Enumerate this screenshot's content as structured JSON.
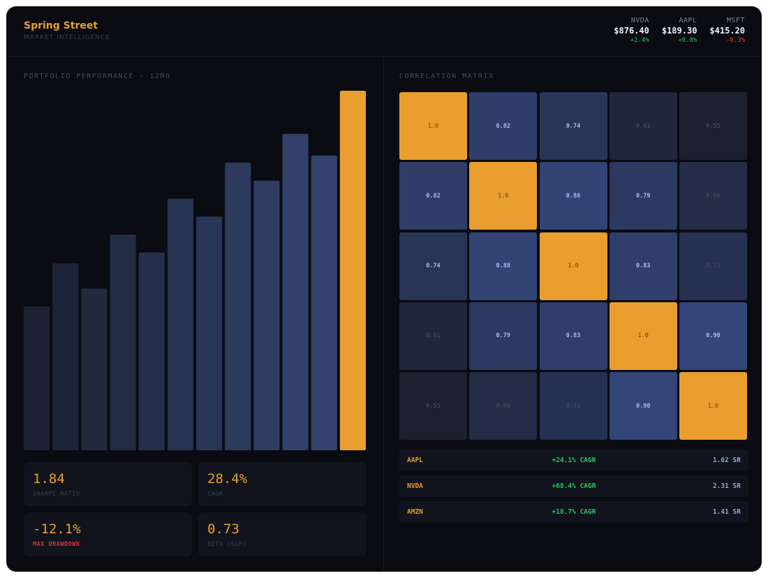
{
  "brand": {
    "name": "Spring Street",
    "subtitle": "MARKET INTELLIGENCE"
  },
  "tickers": [
    {
      "symbol": "NVDA",
      "price": "$876.40",
      "change": "+2.4%",
      "direction": "up"
    },
    {
      "symbol": "AAPL",
      "price": "$189.30",
      "change": "+0.8%",
      "direction": "up"
    },
    {
      "symbol": "MSFT",
      "price": "$415.20",
      "change": "-0.3%",
      "direction": "down"
    }
  ],
  "performance": {
    "title": "PORTFOLIO PERFORMANCE · 12MO"
  },
  "chart_data": {
    "type": "bar",
    "categories": [
      "",
      "",
      "",
      "",
      "",
      "",
      "",
      "",
      "",
      "",
      "",
      ""
    ],
    "values": [
      40,
      52,
      45,
      60,
      55,
      70,
      65,
      80,
      75,
      88,
      82,
      100
    ],
    "ylim": [
      0,
      100
    ],
    "highlight_last": true,
    "colors": {
      "base_dark": "#1c2233",
      "base_light": "#34446f",
      "highlight": "#e99e2f"
    }
  },
  "stats": [
    {
      "value": "1.84",
      "label": "SHARPE RATIO",
      "negative": false
    },
    {
      "value": "28.4%",
      "label": "CAGR",
      "negative": false
    },
    {
      "value": "-12.1%",
      "label": "MAX DRAWDOWN",
      "negative": true
    },
    {
      "value": "0.73",
      "label": "BETA (S&P)",
      "negative": false
    }
  ],
  "correlation": {
    "title": "CORRELATION MATRIX",
    "matrix": [
      [
        "1.0",
        "0.82",
        "0.74",
        "0.61",
        "0.55"
      ],
      [
        "0.82",
        "1.0",
        "0.88",
        "0.79",
        "0.66"
      ],
      [
        "0.74",
        "0.88",
        "1.0",
        "0.83",
        "0.71"
      ],
      [
        "0.61",
        "0.79",
        "0.83",
        "1.0",
        "0.90"
      ],
      [
        "0.55",
        "0.66",
        "0.71",
        "0.90",
        "1.0"
      ]
    ]
  },
  "holdings": [
    {
      "symbol": "AAPL",
      "cagr": "+24.1% CAGR",
      "sharpe": "1.62 SR"
    },
    {
      "symbol": "NVDA",
      "cagr": "+68.4% CAGR",
      "sharpe": "2.31 SR"
    },
    {
      "symbol": "AMZN",
      "cagr": "+18.7% CAGR",
      "sharpe": "1.41 SR"
    }
  ],
  "colors": {
    "accent": "#e99e2f",
    "background": "#0a0c12",
    "panel": "#11141c",
    "positive": "#2fbf60",
    "negative": "#e0413d"
  }
}
